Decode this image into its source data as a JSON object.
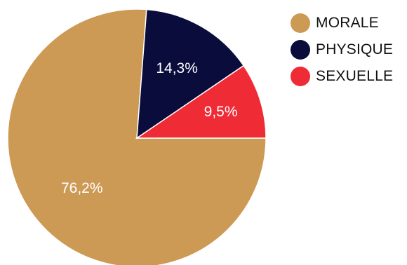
{
  "chart_data": {
    "type": "pie",
    "title": "",
    "categories": [
      "MORALE",
      "PHYSIQUE",
      "SEXUELLE"
    ],
    "values": [
      76.2,
      14.3,
      9.5
    ],
    "labels": [
      "76,2%",
      "14,3%",
      "9,5%"
    ],
    "colors": [
      "#cd9a55",
      "#0a0c3c",
      "#ef2b36"
    ],
    "legend_position": "right"
  }
}
